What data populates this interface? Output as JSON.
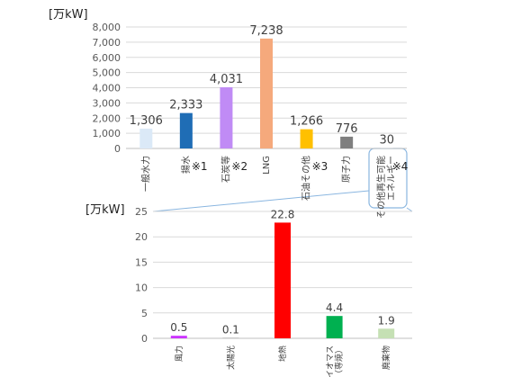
{
  "chart_data": [
    {
      "type": "bar",
      "unit_label": "[万kW]",
      "ylim": [
        0,
        8000
      ],
      "yticks": [
        "0",
        "1,000",
        "2,000",
        "3,000",
        "4,000",
        "5,000",
        "6,000",
        "7,000",
        "8,000"
      ],
      "grid": true,
      "legend": "none",
      "categories": [
        "一般水力",
        "揚水",
        "石炭等",
        "LNG",
        "石油その他",
        "原子力",
        "その他再生可能エネルギー"
      ],
      "category_lines": [
        [
          "一般水力"
        ],
        [
          "揚水"
        ],
        [
          "石炭等"
        ],
        [
          "LNG"
        ],
        [
          "石油その他"
        ],
        [
          "原子力"
        ],
        [
          "その他再生可能",
          "エネルギー"
        ]
      ],
      "notes": [
        "",
        "※1",
        "※2",
        "",
        "※3",
        "",
        "※4"
      ],
      "values": [
        1306,
        2333,
        4031,
        7238,
        1266,
        776,
        30
      ],
      "value_labels": [
        "1,306",
        "2,333",
        "4,031",
        "7,238",
        "1,266",
        "776",
        "30"
      ],
      "colors": [
        "#dbe9f7",
        "#1f6db5",
        "#c08bf5",
        "#f5a97c",
        "#ffc000",
        "#7f7f7f",
        "#dcdcdc"
      ]
    },
    {
      "type": "bar",
      "unit_label": "[万kW]",
      "ylim": [
        0,
        25
      ],
      "yticks": [
        "0",
        "5",
        "10",
        "15",
        "20",
        "25"
      ],
      "grid": true,
      "legend": "none",
      "categories": [
        "風力",
        "太陽光",
        "地熱",
        "バイオマス（専焼）",
        "廃棄物"
      ],
      "category_lines": [
        [
          "風力"
        ],
        [
          "太陽光"
        ],
        [
          "地熱"
        ],
        [
          "バイオマス",
          "（専焼）"
        ],
        [
          "廃棄物"
        ]
      ],
      "values": [
        0.5,
        0.1,
        22.8,
        4.4,
        1.9
      ],
      "value_labels": [
        "0.5",
        "0.1",
        "22.8",
        "4.4",
        "1.9"
      ],
      "colors": [
        "#cc33ff",
        "#bfbfbf",
        "#ff0000",
        "#00b050",
        "#c5e0b4"
      ]
    }
  ]
}
